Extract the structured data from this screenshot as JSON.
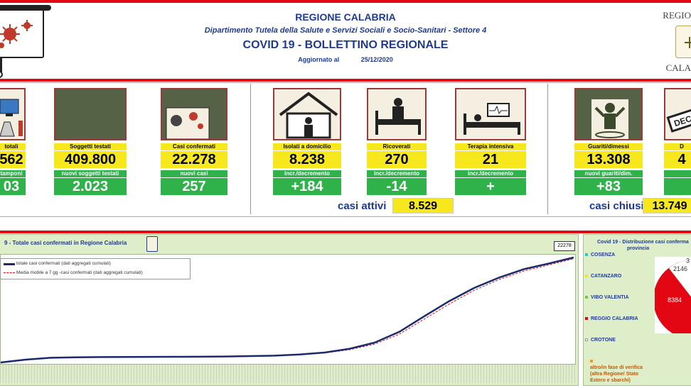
{
  "header": {
    "region": "REGIONE CALABRIA",
    "department": "Dipartimento Tutela della Salute e Servizi Sociali e Socio-Sanitari - Settore 4",
    "title": "COVID 19 - BOLLETTINO REGIONALE",
    "updated_label": "Aggiornato al",
    "updated_date": "25/12/2020",
    "logo_text_top": "REGIO",
    "logo_text_bottom": "CALA"
  },
  "cards": [
    {
      "label": "totali",
      "value": "562",
      "sub_label": "tamponi",
      "sub_value": "03"
    },
    {
      "label": "Soggetti testati",
      "value": "409.800",
      "sub_label": "nuovi soggetti testati",
      "sub_value": "2.023"
    },
    {
      "label": "Casi confermati",
      "value": "22.278",
      "sub_label": "nuovi casi",
      "sub_value": "257"
    },
    {
      "label": "Isolati a domicilio",
      "value": "8.238",
      "sub_label": "incr./decremento",
      "sub_value": "+184"
    },
    {
      "label": "Ricoverati",
      "value": "270",
      "sub_label": "incr./decremento",
      "sub_value": "-14"
    },
    {
      "label": "Terapia intensiva",
      "value": "21",
      "sub_label": "incr./decremento",
      "sub_value": "+"
    },
    {
      "label": "Guariti/dimessi",
      "value": "13.308",
      "sub_label": "nuovi guariti/dim.",
      "sub_value": "+83"
    },
    {
      "label": "D",
      "value": "4",
      "sub_label": "",
      "sub_value": ""
    }
  ],
  "summary": {
    "active_label": "casi attivi",
    "active_value": "8.529",
    "closed_label": "casi chiusi",
    "closed_value": "13.749"
  },
  "chart": {
    "title": "9 - Totale casi confermati in Regione Calabria",
    "legend_main": "totale casi confermati (dati aggregati cumulati)",
    "legend_avg": "Media mobile a 7 gg -casi confermati (dati aggregati cumulati)",
    "end_label": "22278"
  },
  "chart_data": {
    "type": "line",
    "ylim": [
      0,
      22278
    ],
    "series": [
      {
        "name": "totale casi confermati (dati aggregati cumulati)",
        "values": [
          0,
          600,
          1000,
          1100,
          1150,
          1170,
          1190,
          1200,
          1220,
          1260,
          1350,
          1450,
          1700,
          2100,
          2900,
          4200,
          6500,
          9800,
          13000,
          15800,
          18000,
          19800,
          21000,
          22278
        ]
      },
      {
        "name": "Media mobile a 7 gg -casi confermati (dati aggregati cumulati)",
        "values": [
          0,
          500,
          950,
          1080,
          1140,
          1165,
          1185,
          1196,
          1215,
          1250,
          1330,
          1420,
          1640,
          2000,
          2700,
          3900,
          6000,
          9200,
          12400,
          15300,
          17600,
          19400,
          20700,
          22000
        ]
      }
    ]
  },
  "pie": {
    "title_line1": "Covid 19 - Distribuzione casi conferma",
    "title_line2": "provincia",
    "provinces": [
      {
        "name": "COSENZA",
        "color": "#29c4d6"
      },
      {
        "name": "CATANZARO",
        "color": "#f2e233"
      },
      {
        "name": "VIBO VALENTIA",
        "color": "#6ccf3e"
      },
      {
        "name": "REGGIO CALABRIA",
        "color": "#e30613"
      },
      {
        "name": "CROTONE",
        "color": "#ffffff"
      }
    ],
    "note_line1": "altro/in fase di verifica",
    "note_line2": "(altra Regione/ Stato",
    "note_line3": "Estero e sbarchi)",
    "note_color": "#f39a2b",
    "slice_labels": [
      "8384",
      "2146",
      "3"
    ]
  }
}
